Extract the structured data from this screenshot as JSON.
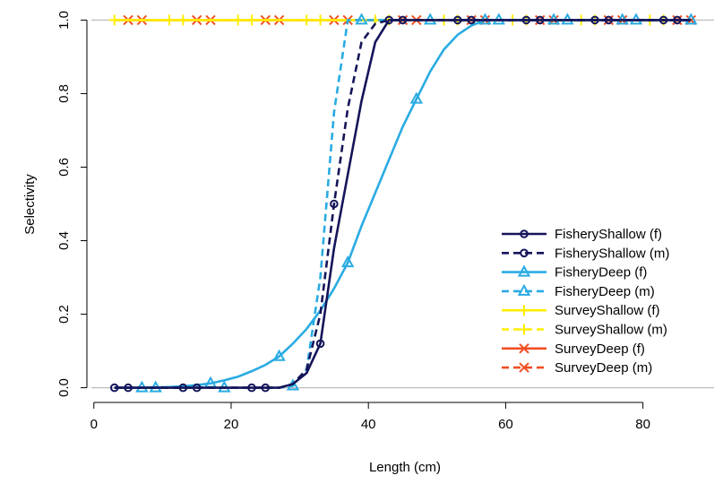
{
  "chart_data": {
    "type": "line",
    "xlabel": "Length (cm)",
    "ylabel": "Selectivity",
    "x": [
      3,
      5,
      7,
      9,
      11,
      13,
      15,
      17,
      19,
      21,
      23,
      25,
      27,
      29,
      31,
      33,
      35,
      37,
      39,
      41,
      43,
      45,
      47,
      49,
      51,
      53,
      55,
      57,
      59,
      61,
      63,
      65,
      67,
      69,
      71,
      73,
      75,
      77,
      79,
      81,
      83,
      85,
      87
    ],
    "series": [
      {
        "name": "FisheryShallow (f)",
        "color": "#15155a",
        "linestyle": "solid",
        "marker": "circle",
        "values": [
          0,
          0,
          0,
          0,
          0,
          0,
          0,
          0,
          0,
          0,
          0,
          0,
          0,
          0.01,
          0.04,
          0.12,
          0.38,
          0.58,
          0.78,
          0.94,
          1,
          1,
          1,
          1,
          1,
          1,
          1,
          1,
          1,
          1,
          1,
          1,
          1,
          1,
          1,
          1,
          1,
          1,
          1,
          1,
          1,
          1,
          1
        ]
      },
      {
        "name": "FisheryShallow (m)",
        "color": "#15155a",
        "linestyle": "dashed",
        "marker": "circle",
        "values": [
          0,
          0,
          0,
          0,
          0,
          0,
          0,
          0,
          0,
          0,
          0,
          0,
          0,
          0.01,
          0.05,
          0.2,
          0.5,
          0.76,
          0.94,
          0.99,
          1,
          1,
          1,
          1,
          1,
          1,
          1,
          1,
          1,
          1,
          1,
          1,
          1,
          1,
          1,
          1,
          1,
          1,
          1,
          1,
          1,
          1,
          1
        ]
      },
      {
        "name": "FisheryDeep (f)",
        "color": "#29abe2",
        "linestyle": "solid",
        "marker": "triangle",
        "values": [
          0,
          0,
          0,
          0.001,
          0.002,
          0.004,
          0.007,
          0.012,
          0.02,
          0.03,
          0.045,
          0.062,
          0.085,
          0.12,
          0.16,
          0.21,
          0.27,
          0.34,
          0.44,
          0.53,
          0.62,
          0.71,
          0.785,
          0.86,
          0.92,
          0.96,
          0.985,
          1,
          1,
          1,
          1,
          1,
          1,
          1,
          1,
          1,
          1,
          1,
          1,
          1,
          1,
          1,
          1
        ]
      },
      {
        "name": "FisheryDeep (m)",
        "color": "#29abe2",
        "linestyle": "dashed",
        "marker": "triangle",
        "values": [
          0,
          0,
          0,
          0,
          0,
          0,
          0,
          0,
          0,
          0,
          0,
          0,
          0,
          0.005,
          0.05,
          0.3,
          0.75,
          1,
          1,
          1,
          1,
          1,
          1,
          1,
          1,
          1,
          1,
          1,
          1,
          1,
          1,
          1,
          1,
          1,
          1,
          1,
          1,
          1,
          1,
          1,
          1,
          1,
          1
        ]
      },
      {
        "name": "SurveyShallow (f)",
        "color": "#ffee00",
        "linestyle": "solid",
        "marker": "plus",
        "values": [
          1,
          1,
          1,
          1,
          1,
          1,
          1,
          1,
          1,
          1,
          1,
          1,
          1,
          1,
          1,
          1,
          1,
          1,
          1,
          1,
          1,
          1,
          1,
          1,
          1,
          1,
          1,
          1,
          1,
          1,
          1,
          1,
          1,
          1,
          1,
          1,
          1,
          1,
          1,
          1,
          1,
          1,
          1
        ]
      },
      {
        "name": "SurveyShallow (m)",
        "color": "#ffee00",
        "linestyle": "dashed",
        "marker": "plus",
        "values": [
          1,
          1,
          1,
          1,
          1,
          1,
          1,
          1,
          1,
          1,
          1,
          1,
          1,
          1,
          1,
          1,
          1,
          1,
          1,
          1,
          1,
          1,
          1,
          1,
          1,
          1,
          1,
          1,
          1,
          1,
          1,
          1,
          1,
          1,
          1,
          1,
          1,
          1,
          1,
          1,
          1,
          1,
          1
        ]
      },
      {
        "name": "SurveyDeep (f)",
        "color": "#f04e23",
        "linestyle": "solid",
        "marker": "cross",
        "values": [
          1,
          1,
          1,
          1,
          1,
          1,
          1,
          1,
          1,
          1,
          1,
          1,
          1,
          1,
          1,
          1,
          1,
          1,
          1,
          1,
          1,
          1,
          1,
          1,
          1,
          1,
          1,
          1,
          1,
          1,
          1,
          1,
          1,
          1,
          1,
          1,
          1,
          1,
          1,
          1,
          1,
          1,
          1
        ]
      },
      {
        "name": "SurveyDeep (m)",
        "color": "#f04e23",
        "linestyle": "dashed",
        "marker": "cross",
        "values": [
          1,
          1,
          1,
          1,
          1,
          1,
          1,
          1,
          1,
          1,
          1,
          1,
          1,
          1,
          1,
          1,
          1,
          1,
          1,
          1,
          1,
          1,
          1,
          1,
          1,
          1,
          1,
          1,
          1,
          1,
          1,
          1,
          1,
          1,
          1,
          1,
          1,
          1,
          1,
          1,
          1,
          1,
          1
        ]
      }
    ],
    "xlim": [
      -0.36,
      90.36
    ],
    "ylim": [
      -0.04,
      1.04
    ],
    "xticks": [
      0,
      20,
      40,
      60,
      80
    ],
    "yticks": [
      {
        "value": 0,
        "label": "0.0"
      },
      0.2,
      0.4,
      0.6,
      0.8,
      {
        "value": 1,
        "label": "1.0"
      }
    ],
    "reference_lines": [
      0,
      1
    ],
    "legend": "bottom-right"
  }
}
